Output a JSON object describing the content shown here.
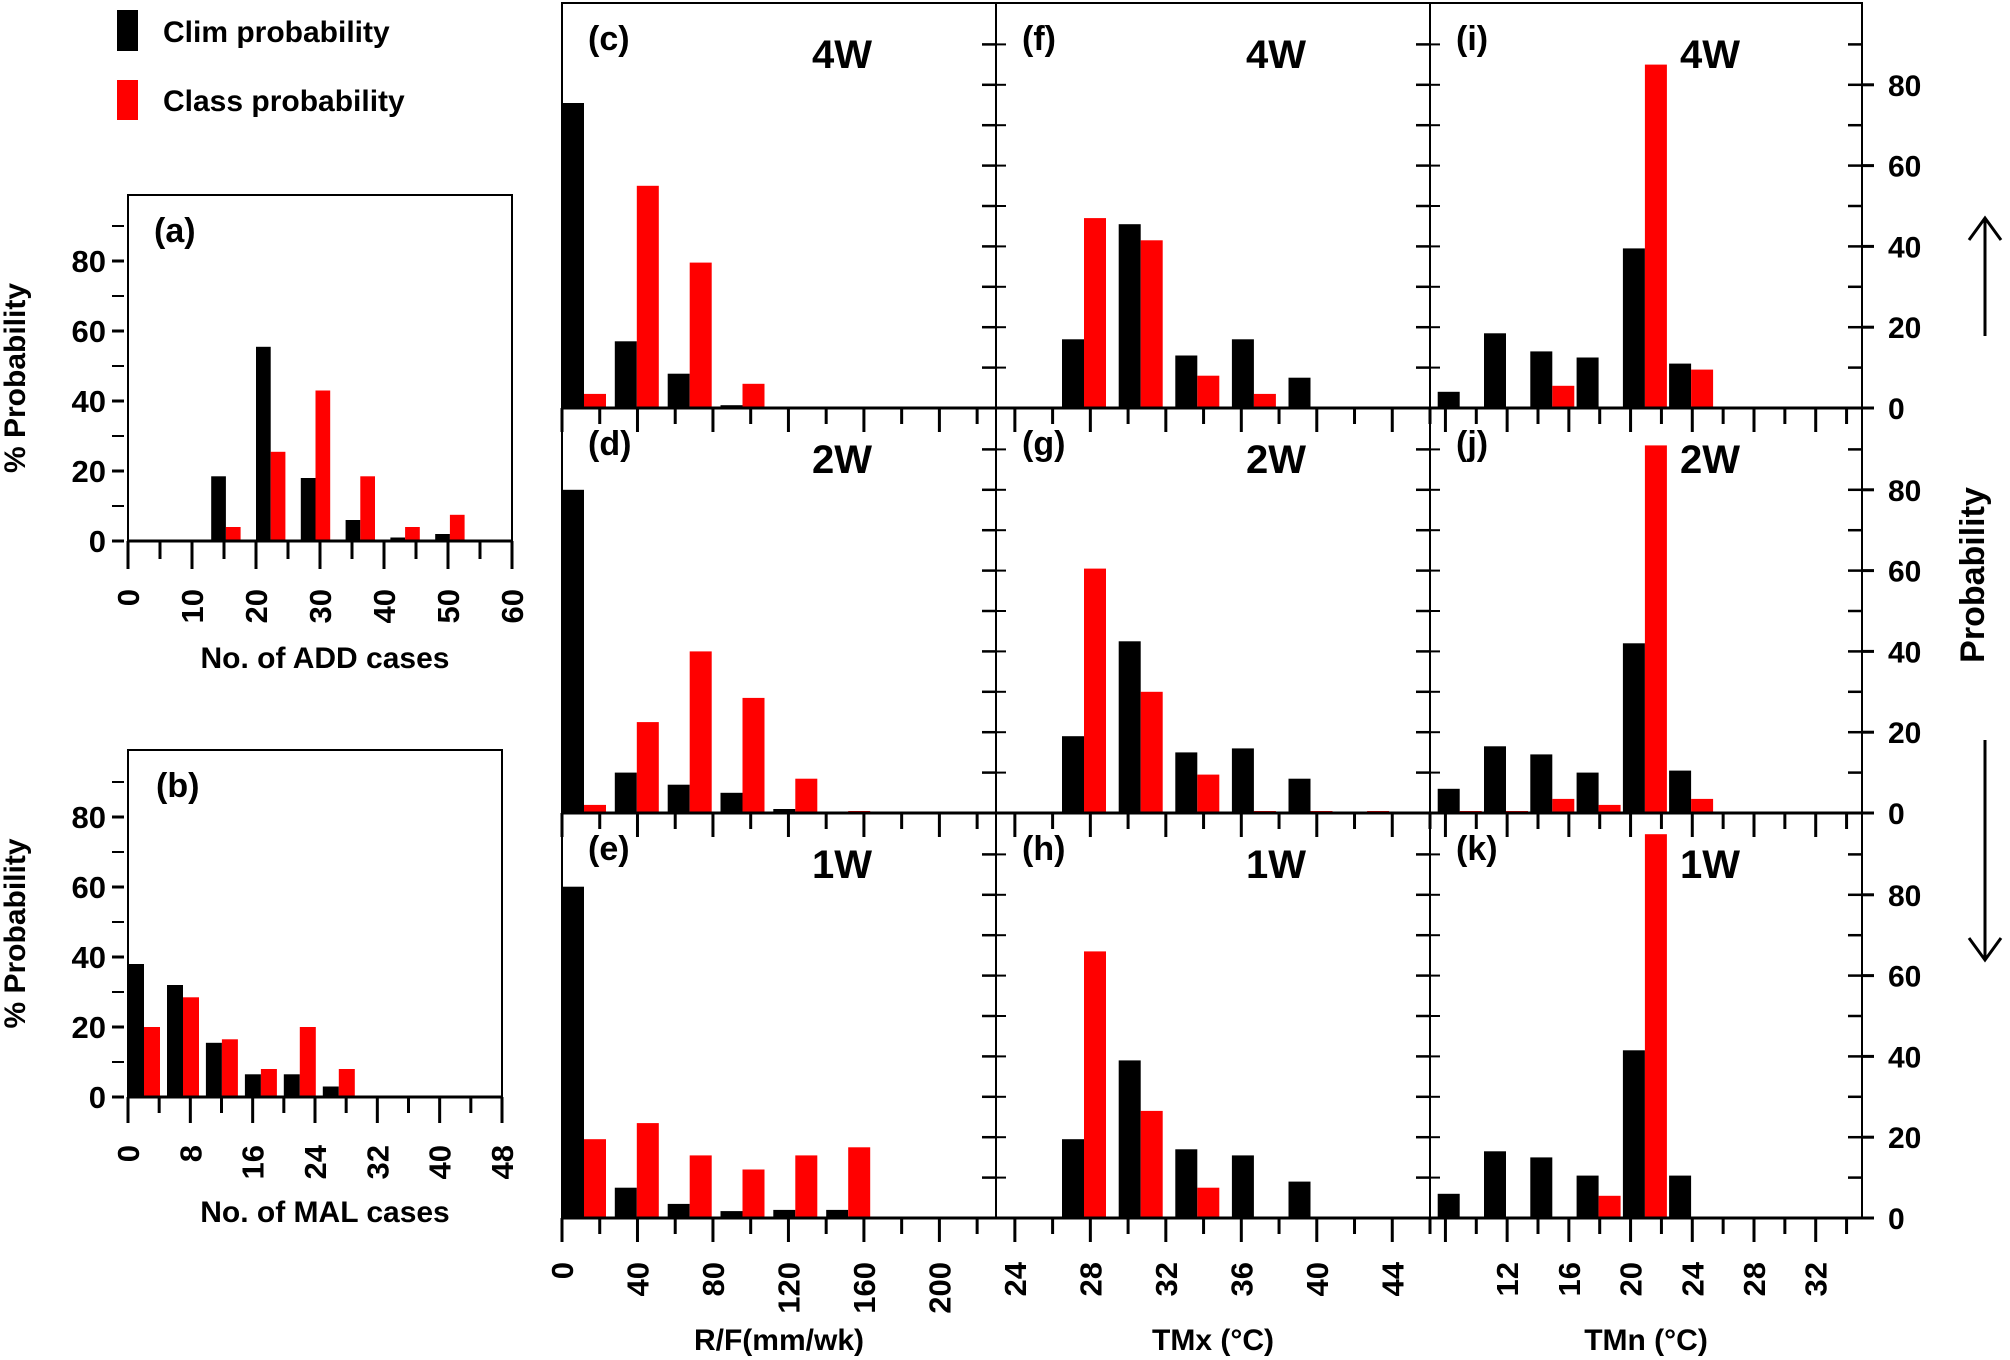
{
  "legend": {
    "items": [
      {
        "label": "Clim probability",
        "color": "#000000"
      },
      {
        "label": "Class probability",
        "color": "#ff0000"
      }
    ]
  },
  "right_axis": {
    "label": "Probability",
    "ticks": [
      "0",
      "20",
      "40",
      "60",
      "80"
    ]
  },
  "chart_data": [
    {
      "type": "bar",
      "panel": "(a)",
      "title": "",
      "xlabel": "No. of ADD cases",
      "ylabel": "% Probability",
      "xlim": [
        0,
        60
      ],
      "ylim": [
        0,
        95
      ],
      "xticks": [
        "0",
        "10",
        "20",
        "30",
        "40",
        "50",
        "60"
      ],
      "yticks": [
        "0",
        "20",
        "40",
        "60",
        "80"
      ],
      "bin_width": 7,
      "x": [
        10.5,
        17.5,
        24.5,
        31.5,
        38.5,
        45.5
      ],
      "series": [
        {
          "name": "Clim probability",
          "values": [
            18.5,
            55.5,
            18,
            6,
            1,
            2
          ]
        },
        {
          "name": "Class probability",
          "values": [
            4,
            25.5,
            43,
            18.5,
            4,
            7.5
          ]
        }
      ]
    },
    {
      "type": "bar",
      "panel": "(b)",
      "title": "",
      "xlabel": "No. of MAL cases",
      "ylabel": "% Probability",
      "xlim": [
        0,
        48
      ],
      "ylim": [
        0,
        95
      ],
      "xticks": [
        "0",
        "8",
        "16",
        "24",
        "32",
        "40",
        "48"
      ],
      "yticks": [
        "0",
        "20",
        "40",
        "60",
        "80"
      ],
      "bin_width": 5,
      "x": [
        0,
        5,
        10,
        15,
        20,
        25
      ],
      "series": [
        {
          "name": "Clim probability",
          "values": [
            38,
            32,
            15.5,
            6.5,
            6.5,
            3
          ]
        },
        {
          "name": "Class probability",
          "values": [
            20,
            28.5,
            16.5,
            8,
            20,
            8
          ]
        }
      ]
    },
    {
      "type": "bar",
      "panel": "(c)",
      "lead": "4W",
      "variable": "R/F",
      "xlabel": "",
      "ylim": [
        0,
        95
      ],
      "xlim": [
        0,
        230
      ],
      "bin_width": 28,
      "x": [
        0,
        28,
        56,
        84,
        112,
        140
      ],
      "series": [
        {
          "name": "Clim probability",
          "values": [
            75.5,
            16.5,
            8.5,
            0.7,
            0,
            0
          ]
        },
        {
          "name": "Class probability",
          "values": [
            3.5,
            55,
            36,
            6,
            0.3,
            0.3
          ]
        }
      ]
    },
    {
      "type": "bar",
      "panel": "(d)",
      "lead": "2W",
      "variable": "R/F",
      "xlabel": "",
      "ylim": [
        0,
        95
      ],
      "xlim": [
        0,
        230
      ],
      "bin_width": 28,
      "x": [
        0,
        28,
        56,
        84,
        112,
        140
      ],
      "series": [
        {
          "name": "Clim probability",
          "values": [
            80,
            10,
            7,
            5,
            1,
            0.3
          ]
        },
        {
          "name": "Class probability",
          "values": [
            2,
            22.5,
            40,
            28.5,
            8.5,
            0.5
          ]
        }
      ]
    },
    {
      "type": "bar",
      "panel": "(e)",
      "lead": "1W",
      "variable": "R/F",
      "xlabel": "R/F(mm/wk)",
      "ylim": [
        0,
        95
      ],
      "xlim": [
        0,
        230
      ],
      "xticks": [
        "0",
        "40",
        "80",
        "120",
        "160",
        "200"
      ],
      "bin_width": 28,
      "x": [
        0,
        28,
        56,
        84,
        112,
        140
      ],
      "series": [
        {
          "name": "Clim probability",
          "values": [
            82,
            7.5,
            3.5,
            1.7,
            2,
            2
          ]
        },
        {
          "name": "Class probability",
          "values": [
            19.5,
            23.5,
            15.5,
            12,
            15.5,
            17.5
          ]
        }
      ]
    },
    {
      "type": "bar",
      "panel": "(f)",
      "lead": "4W",
      "variable": "TMx",
      "xlabel": "",
      "ylim": [
        0,
        95
      ],
      "xlim": [
        23,
        46
      ],
      "bin_width": 3,
      "x": [
        26.5,
        29.5,
        32.5,
        35.5,
        38.5,
        41.5
      ],
      "series": [
        {
          "name": "Clim probability",
          "values": [
            17,
            45.5,
            13,
            17,
            7.5,
            0
          ]
        },
        {
          "name": "Class probability",
          "values": [
            47,
            41.5,
            8,
            3.5,
            0.2,
            0.3
          ]
        }
      ]
    },
    {
      "type": "bar",
      "panel": "(g)",
      "lead": "2W",
      "variable": "TMx",
      "xlabel": "",
      "ylim": [
        0,
        95
      ],
      "xlim": [
        23,
        46
      ],
      "bin_width": 3,
      "x": [
        26.5,
        29.5,
        32.5,
        35.5,
        38.5,
        41.5
      ],
      "series": [
        {
          "name": "Clim probability",
          "values": [
            19,
            42.5,
            15,
            16,
            8.5,
            0
          ]
        },
        {
          "name": "Class probability",
          "values": [
            60.5,
            30,
            9.5,
            0.5,
            0.5,
            0.5
          ]
        }
      ]
    },
    {
      "type": "bar",
      "panel": "(h)",
      "lead": "1W",
      "variable": "TMx",
      "xlabel": "TMx (°C)",
      "ylim": [
        0,
        95
      ],
      "xlim": [
        23,
        46
      ],
      "xticks": [
        "24",
        "28",
        "32",
        "36",
        "40",
        "44"
      ],
      "bin_width": 3,
      "x": [
        26.5,
        29.5,
        32.5,
        35.5,
        38.5,
        41.5
      ],
      "series": [
        {
          "name": "Clim probability",
          "values": [
            19.5,
            39,
            17,
            15.5,
            9,
            0.3
          ]
        },
        {
          "name": "Class probability",
          "values": [
            66,
            26.5,
            7.5,
            0.3,
            0.3,
            0.3
          ]
        }
      ]
    },
    {
      "type": "bar",
      "panel": "(i)",
      "lead": "4W",
      "variable": "TMn",
      "xlabel": "",
      "ylim": [
        0,
        95
      ],
      "xlim": [
        7,
        35
      ],
      "bin_width": 3,
      "x": [
        7.5,
        10.5,
        13.5,
        16.5,
        19.5,
        22.5
      ],
      "series": [
        {
          "name": "Clim probability",
          "values": [
            4,
            18.5,
            14,
            12.5,
            39.5,
            11
          ]
        },
        {
          "name": "Class probability",
          "values": [
            0.3,
            0.3,
            5.5,
            0.3,
            85,
            9.5
          ]
        }
      ]
    },
    {
      "type": "bar",
      "panel": "(j)",
      "lead": "2W",
      "variable": "TMn",
      "xlabel": "",
      "ylim": [
        0,
        95
      ],
      "xlim": [
        7,
        35
      ],
      "bin_width": 3,
      "x": [
        7.5,
        10.5,
        13.5,
        16.5,
        19.5,
        22.5
      ],
      "series": [
        {
          "name": "Clim probability",
          "values": [
            6,
            16.5,
            14.5,
            10,
            42,
            10.5
          ]
        },
        {
          "name": "Class probability",
          "values": [
            0.5,
            0.5,
            3.5,
            2,
            91,
            3.5
          ]
        }
      ]
    },
    {
      "type": "bar",
      "panel": "(k)",
      "lead": "1W",
      "variable": "TMn",
      "xlabel": "TMn (°C)",
      "ylim": [
        0,
        95
      ],
      "xlim": [
        7,
        35
      ],
      "xticks": [
        "12",
        "16",
        "20",
        "24",
        "28",
        "32"
      ],
      "bin_width": 3,
      "x": [
        7.5,
        10.5,
        13.5,
        16.5,
        19.5,
        22.5
      ],
      "series": [
        {
          "name": "Clim probability",
          "values": [
            6,
            16.5,
            15,
            10.5,
            41.5,
            10.5
          ]
        },
        {
          "name": "Class probability",
          "values": [
            0.3,
            0.3,
            0.3,
            5.5,
            95,
            0.3
          ]
        }
      ]
    }
  ]
}
